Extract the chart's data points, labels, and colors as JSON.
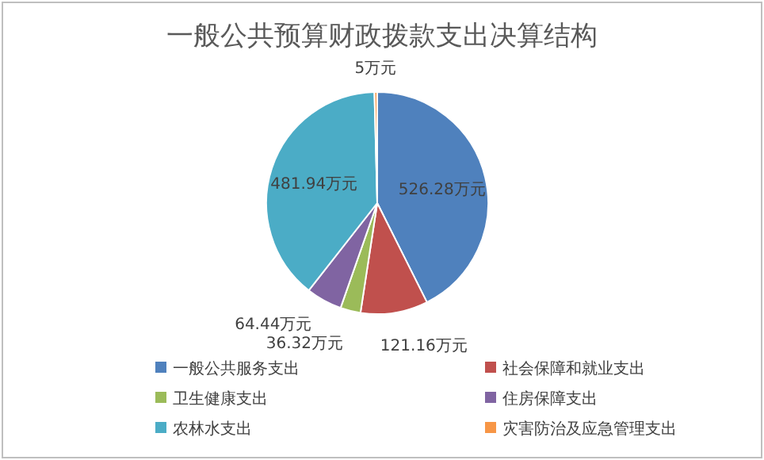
{
  "chart_data": {
    "type": "pie",
    "title": "一般公共预算财政拨款支出决算结构",
    "categories": [
      "一般公共服务支出",
      "社会保障和就业支出",
      "卫生健康支出",
      "住房保障支出",
      "农林水支出",
      "灾害防治及应急管理支出"
    ],
    "values": [
      526.28,
      121.16,
      36.32,
      64.44,
      481.94,
      5
    ],
    "colors": [
      "#4f81bd",
      "#c0504d",
      "#9bbb59",
      "#8064a2",
      "#4bacc6",
      "#f79646"
    ],
    "value_labels": [
      "526.28万元",
      "121.16万元",
      "36.32万元",
      "64.44万元",
      "481.94万元",
      "5万元"
    ],
    "legend": "bottom"
  }
}
